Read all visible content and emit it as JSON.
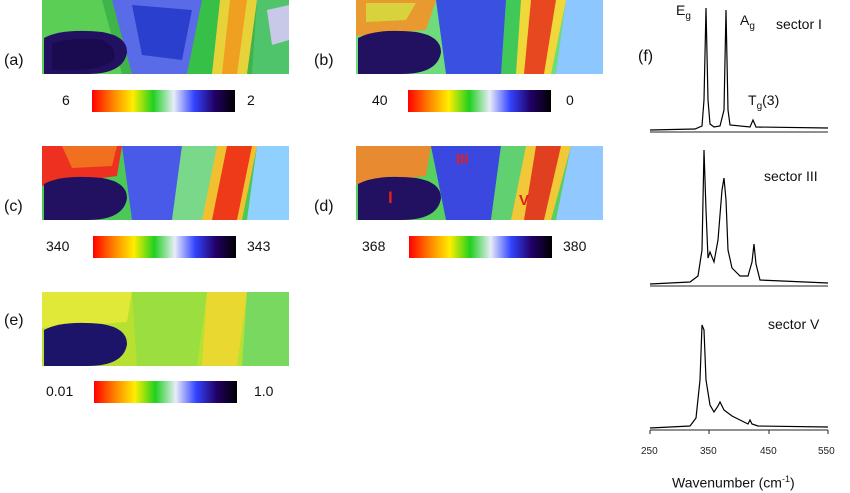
{
  "panels": [
    {
      "label": "(a)",
      "cbar_min": "6",
      "cbar_max": "2",
      "gradient": "rainbow"
    },
    {
      "label": "(b)",
      "cbar_min": "40",
      "cbar_max": "0",
      "gradient": "rainbow"
    },
    {
      "label": "(c)",
      "cbar_min": "340",
      "cbar_max": "343",
      "gradient": "rainbow"
    },
    {
      "label": "(d)",
      "cbar_min": "368",
      "cbar_max": "380",
      "gradient": "rainbow",
      "markers": [
        "I",
        "III",
        "V"
      ]
    },
    {
      "label": "(e)",
      "cbar_min": "0.01",
      "cbar_max": "1.0",
      "gradient": "rainbow"
    }
  ],
  "spectra_panel": {
    "label": "(f)",
    "xlabel": "Wavenumber (cm-1)",
    "xlabel_main": "Wavenumber (cm",
    "xlabel_sup": "-1",
    "xlabel_end": ")",
    "xticks": [
      "250",
      "350",
      "450",
      "550"
    ],
    "sectors": [
      "sector I",
      "sector III",
      "sector V"
    ],
    "peaks": {
      "eg": "E",
      "eg_sub": "g",
      "ag": "A",
      "ag_sub": "g",
      "tg": "T",
      "tg_sub": "g",
      "tg_suffix": "(3)"
    }
  },
  "chart_data": {
    "type": "line",
    "xlabel": "Wavenumber (cm-1)",
    "xlim": [
      250,
      550
    ],
    "x_ticks": [
      250,
      350,
      450,
      550
    ],
    "series": [
      {
        "name": "sector I",
        "peaks": [
          {
            "x": 342,
            "rel_intensity": 1.0
          },
          {
            "x": 377,
            "rel_intensity": 1.0
          },
          {
            "x": 430,
            "rel_intensity": 0.08
          }
        ]
      },
      {
        "name": "sector III",
        "peaks": [
          {
            "x": 342,
            "rel_intensity": 1.0
          },
          {
            "x": 375,
            "rel_intensity": 0.85
          },
          {
            "x": 430,
            "rel_intensity": 0.28
          }
        ]
      },
      {
        "name": "sector V",
        "peaks": [
          {
            "x": 342,
            "rel_intensity": 1.0
          },
          {
            "x": 370,
            "rel_intensity": 0.2
          },
          {
            "x": 420,
            "rel_intensity": 0.08
          }
        ]
      }
    ]
  },
  "colors": {
    "marker": "#e02020",
    "gradient_stops": [
      "#ff0000",
      "#ff7700",
      "#ffff00",
      "#00dd00",
      "#e8e8f5",
      "#3344ff",
      "#220066",
      "#000000"
    ]
  }
}
